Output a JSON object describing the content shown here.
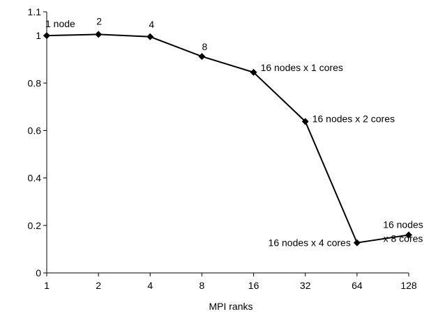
{
  "chart_data": {
    "type": "line",
    "title": "",
    "xlabel": "MPI ranks",
    "ylabel": "",
    "categories": [
      "1",
      "2",
      "4",
      "8",
      "16",
      "32",
      "64",
      "128"
    ],
    "ylim": [
      0,
      1.1
    ],
    "yticks": [
      "0",
      "0.2",
      "0.4",
      "0.6",
      "0.8",
      "1",
      "1.1"
    ],
    "grid": false,
    "series": [
      {
        "values": [
          1.0,
          1.005,
          0.995,
          0.912,
          0.845,
          0.638,
          0.127,
          0.16
        ],
        "color": "#000000",
        "marker": "diamond"
      }
    ],
    "annotations": [
      {
        "lines": [
          "1 node"
        ],
        "point": 0
      },
      {
        "lines": [
          "2"
        ],
        "point": 1
      },
      {
        "lines": [
          "4"
        ],
        "point": 2
      },
      {
        "lines": [
          "8"
        ],
        "point": 3
      },
      {
        "lines": [
          "16 nodes x 1 cores"
        ],
        "point": 4
      },
      {
        "lines": [
          "16 nodes x 2 cores"
        ],
        "point": 5
      },
      {
        "lines": [
          "16 nodes x 4 cores"
        ],
        "point": 6
      },
      {
        "lines": [
          "16 nodes",
          "x 8 cores"
        ],
        "point": 7
      }
    ]
  }
}
